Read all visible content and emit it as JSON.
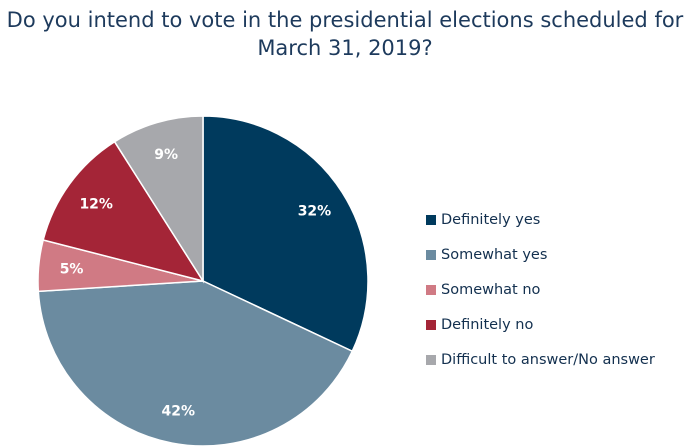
{
  "chart_data": {
    "type": "pie",
    "title": "Do you intend to vote in the presidential elections scheduled for March 31, 2019?",
    "title_lines": [
      "Do you intend to vote in the presidential elections scheduled for",
      "March 31, 2019?"
    ],
    "categories": [
      "Definitely yes",
      "Somewhat yes",
      "Somewhat no",
      "Definitely no",
      "Difficult to answer/No answer"
    ],
    "values": [
      32,
      42,
      5,
      12,
      9
    ],
    "data_labels": [
      "32%",
      "42%",
      "5%",
      "12%",
      "9%"
    ],
    "colors": [
      "#003a5d",
      "#6b8ba0",
      "#d07a84",
      "#a42537",
      "#a7a8ac"
    ],
    "start_angle": "top, clockwise",
    "legend_position": "right"
  }
}
